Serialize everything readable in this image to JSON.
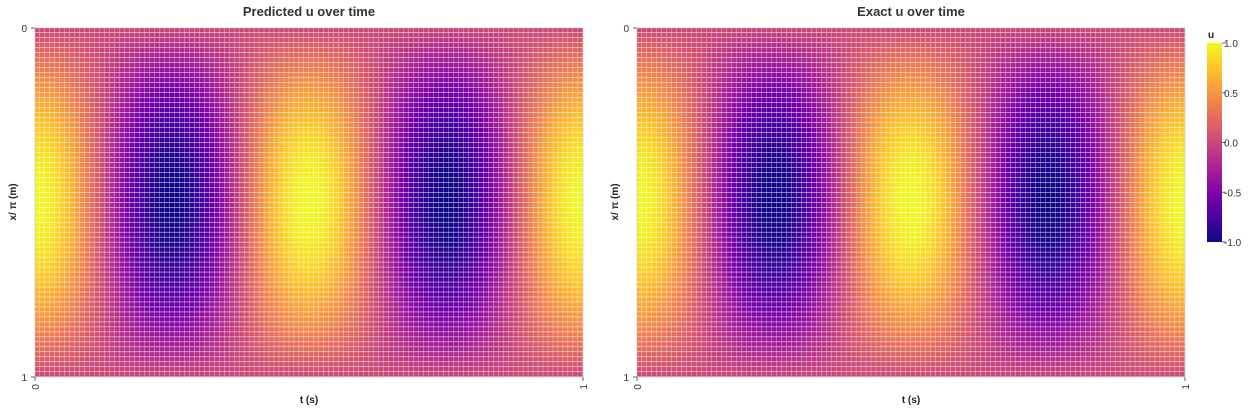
{
  "chart_data": [
    {
      "type": "heatmap",
      "title": "Predicted u over time",
      "xlabel": "t (s)",
      "ylabel": "x/ π (m)",
      "xlim": [
        0,
        1
      ],
      "ylim": [
        0,
        1
      ],
      "y_inverted": true,
      "x_ticks": [
        "0",
        "1"
      ],
      "y_ticks": [
        "0",
        "1"
      ],
      "colormap": "plasma",
      "field": "u = sin(πx)·cos(4πt)",
      "sample_values": {
        "t": [
          0,
          0.25,
          0.5,
          0.75,
          1.0
        ],
        "u_at_x_0.5": [
          1.0,
          -1.0,
          1.0,
          -1.0,
          1.0
        ]
      }
    },
    {
      "type": "heatmap",
      "title": "Exact u over time",
      "xlabel": "t (s)",
      "ylabel": "x/ π (m)",
      "xlim": [
        0,
        1
      ],
      "ylim": [
        0,
        1
      ],
      "y_inverted": true,
      "x_ticks": [
        "0",
        "1"
      ],
      "y_ticks": [
        "0",
        "1"
      ],
      "colormap": "plasma",
      "field": "u = sin(πx)·cos(4πt)",
      "sample_values": {
        "t": [
          0,
          0.25,
          0.5,
          0.75,
          1.0
        ],
        "u_at_x_0.5": [
          1.0,
          -1.0,
          1.0,
          -1.0,
          1.0
        ]
      }
    }
  ],
  "colorbar": {
    "title": "u",
    "range": [
      -1.0,
      1.0
    ],
    "ticks": [
      "1.0",
      "0.5",
      "0.0",
      "-0.5",
      "-1.0"
    ],
    "tick_values": [
      1.0,
      0.5,
      0.0,
      -0.5,
      -1.0
    ]
  },
  "colors": {
    "plasma": [
      "#0d0887",
      "#46039f",
      "#7201a8",
      "#9c179e",
      "#bd3786",
      "#d8576b",
      "#ed7953",
      "#fb9f3a",
      "#fdca26",
      "#f0f921"
    ]
  }
}
